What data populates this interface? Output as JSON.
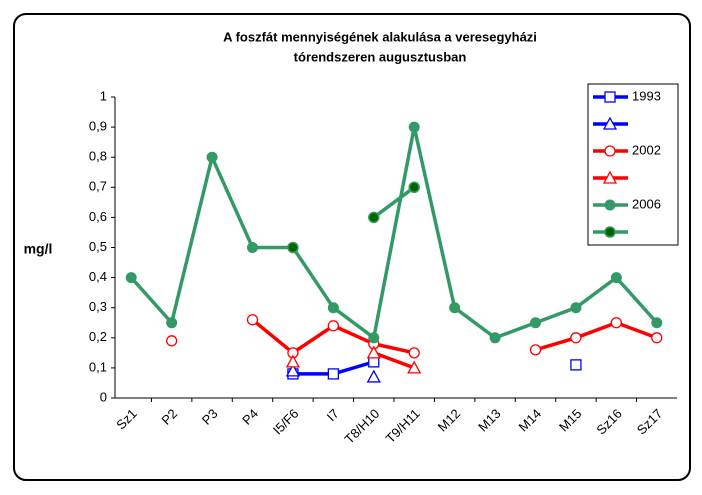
{
  "chart_data": {
    "type": "line",
    "title_lines": [
      "A foszfát mennyiségének alakulása a veresegyházi",
      "tórendszeren augusztusban"
    ],
    "y_label": "mg/l",
    "categories": [
      "Sz1",
      "P2",
      "P3",
      "P4",
      "I5/F6",
      "I7",
      "T8/H10",
      "T9/H11",
      "M12",
      "M13",
      "M14",
      "M15",
      "Sz16",
      "Sz17"
    ],
    "ylim": [
      0,
      1
    ],
    "yticks": [
      0,
      {
        "value": 0.1,
        "label": "0,1"
      },
      {
        "value": 0.2,
        "label": "0,2"
      },
      {
        "value": 0.3,
        "label": "0,3"
      },
      {
        "value": 0.4,
        "label": "0,4"
      },
      {
        "value": 0.5,
        "label": "0,5"
      },
      {
        "value": 0.6,
        "label": "0,6"
      },
      {
        "value": 0.7,
        "label": "0,7"
      },
      {
        "value": 0.8,
        "label": "0,8"
      },
      {
        "value": 0.9,
        "label": "0,9"
      },
      1
    ],
    "grid": false,
    "legend": "upper right",
    "series": [
      {
        "name": "1993",
        "color": "#0000ff",
        "marker": "square",
        "values": [
          null,
          null,
          null,
          null,
          0.08,
          0.08,
          0.12,
          null,
          null,
          null,
          null,
          0.11,
          null,
          null
        ]
      },
      {
        "color": "#0000ff",
        "marker": "triangle",
        "values": [
          null,
          null,
          null,
          null,
          0.09,
          null,
          0.07,
          null,
          null,
          null,
          null,
          null,
          null,
          null
        ]
      },
      {
        "name": "2002",
        "color": "#ff0000",
        "marker": "circle",
        "values": [
          null,
          0.19,
          null,
          0.26,
          0.15,
          0.24,
          0.18,
          0.15,
          null,
          null,
          0.16,
          0.2,
          0.25,
          0.2
        ]
      },
      {
        "color": "#ff0000",
        "marker": "triangle",
        "values": [
          null,
          null,
          null,
          null,
          0.12,
          null,
          0.15,
          0.1,
          null,
          null,
          null,
          null,
          null,
          null
        ]
      },
      {
        "name": "2006",
        "color": "#339966",
        "marker": "filled-circle",
        "values": [
          0.4,
          0.25,
          0.8,
          0.5,
          0.5,
          0.3,
          0.2,
          0.9,
          0.3,
          0.2,
          0.25,
          0.3,
          0.4,
          0.25
        ]
      },
      {
        "color": "#339966",
        "marker": "dark-circle",
        "values": [
          null,
          null,
          null,
          null,
          0.5,
          null,
          0.6,
          0.7,
          null,
          null,
          null,
          null,
          null,
          null
        ]
      }
    ]
  }
}
